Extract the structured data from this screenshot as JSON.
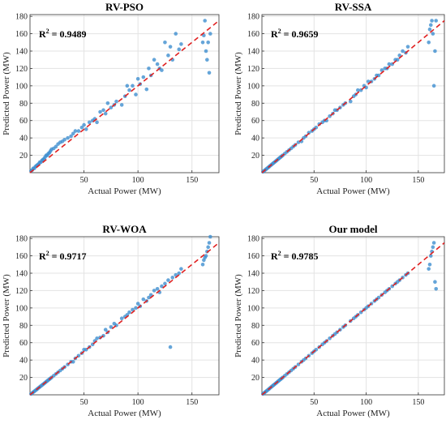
{
  "colors": {
    "points": "#3f8fcf",
    "diagonal": "#e02020",
    "grid": "#e3e3e3",
    "axis": "#333333"
  },
  "chart_data": [
    {
      "type": "scatter",
      "title": "RV-PSO",
      "r2_label": "R",
      "r2_sup": "2",
      "r2_value": "= 0.9489",
      "xlabel": "Actual Power (MW)",
      "ylabel": "Predicted Power (MW)",
      "xlim": [
        0,
        175
      ],
      "ylim": [
        0,
        182
      ],
      "xticks": [
        "50",
        "100",
        "150"
      ],
      "yticks": [
        "20",
        "40",
        "60",
        "80",
        "100",
        "120",
        "140",
        "160",
        "180"
      ],
      "grid": true,
      "diagonal": "y=x",
      "x": [
        1,
        2,
        3,
        4,
        5,
        6,
        7,
        8,
        9,
        10,
        11,
        12,
        13,
        14,
        15,
        16,
        17,
        18,
        19,
        20,
        22,
        24,
        26,
        28,
        30,
        32,
        35,
        38,
        40,
        42,
        45,
        48,
        50,
        52,
        55,
        58,
        60,
        62,
        65,
        68,
        70,
        72,
        75,
        78,
        80,
        85,
        88,
        90,
        92,
        95,
        98,
        100,
        102,
        105,
        108,
        110,
        112,
        115,
        118,
        120,
        122,
        125,
        128,
        130,
        132,
        135,
        138,
        140,
        160,
        161,
        162,
        163,
        164,
        165,
        166,
        167
      ],
      "y": [
        2,
        3,
        5,
        5,
        7,
        8,
        9,
        10,
        12,
        12,
        14,
        15,
        16,
        18,
        20,
        20,
        22,
        23,
        25,
        27,
        28,
        30,
        33,
        35,
        36,
        38,
        40,
        42,
        45,
        48,
        48,
        52,
        55,
        50,
        58,
        60,
        62,
        58,
        70,
        72,
        68,
        80,
        75,
        78,
        82,
        78,
        88,
        100,
        95,
        100,
        90,
        108,
        102,
        110,
        96,
        120,
        112,
        130,
        125,
        120,
        118,
        150,
        135,
        145,
        130,
        160,
        142,
        148,
        150,
        158,
        175,
        140,
        130,
        150,
        115,
        160
      ]
    },
    {
      "type": "scatter",
      "title": "RV-SSA",
      "r2_label": "R",
      "r2_sup": "2",
      "r2_value": "= 0.9659",
      "xlabel": "Actual Power (MW)",
      "ylabel": "Predicted Power (MW)",
      "xlim": [
        0,
        175
      ],
      "ylim": [
        0,
        182
      ],
      "xticks": [
        "50",
        "100",
        "150"
      ],
      "yticks": [
        "20",
        "40",
        "60",
        "80",
        "100",
        "120",
        "140",
        "160",
        "180"
      ],
      "grid": true,
      "diagonal": "y=x",
      "x": [
        1,
        2,
        3,
        4,
        5,
        6,
        7,
        8,
        9,
        10,
        11,
        12,
        13,
        14,
        15,
        16,
        17,
        18,
        19,
        20,
        22,
        24,
        26,
        28,
        30,
        32,
        35,
        38,
        40,
        42,
        45,
        48,
        50,
        52,
        55,
        58,
        60,
        62,
        65,
        68,
        70,
        72,
        75,
        78,
        80,
        85,
        88,
        90,
        92,
        95,
        98,
        100,
        102,
        105,
        108,
        110,
        112,
        115,
        118,
        120,
        122,
        125,
        128,
        130,
        132,
        135,
        138,
        140,
        160,
        161,
        162,
        163,
        164,
        165,
        166,
        167
      ],
      "y": [
        1,
        2,
        3,
        4,
        5,
        6,
        7,
        8,
        9,
        10,
        11,
        12,
        13,
        14,
        15,
        16,
        17,
        18,
        19,
        20,
        22,
        24,
        26,
        28,
        30,
        32,
        35,
        36,
        40,
        42,
        46,
        48,
        50,
        52,
        56,
        58,
        60,
        60,
        65,
        68,
        72,
        72,
        75,
        78,
        80,
        82,
        88,
        90,
        95,
        95,
        100,
        98,
        105,
        105,
        108,
        112,
        112,
        118,
        120,
        120,
        125,
        125,
        130,
        130,
        135,
        140,
        138,
        145,
        150,
        165,
        170,
        175,
        160,
        100,
        140,
        175
      ]
    },
    {
      "type": "scatter",
      "title": "RV-WOA",
      "r2_label": "R",
      "r2_sup": "2",
      "r2_value": "= 0.9717",
      "xlabel": "Actual Power (MW)",
      "ylabel": "Predicted Power (MW)",
      "xlim": [
        0,
        175
      ],
      "ylim": [
        0,
        182
      ],
      "xticks": [
        "50",
        "100",
        "150"
      ],
      "yticks": [
        "20",
        "40",
        "60",
        "80",
        "100",
        "120",
        "140",
        "160",
        "180"
      ],
      "grid": true,
      "diagonal": "y=x",
      "x": [
        1,
        2,
        3,
        4,
        5,
        6,
        7,
        8,
        9,
        10,
        11,
        12,
        13,
        14,
        15,
        16,
        17,
        18,
        19,
        20,
        22,
        24,
        26,
        28,
        30,
        32,
        35,
        38,
        40,
        42,
        45,
        48,
        50,
        52,
        55,
        58,
        60,
        62,
        65,
        68,
        70,
        72,
        75,
        78,
        80,
        85,
        88,
        90,
        92,
        95,
        98,
        100,
        102,
        105,
        108,
        110,
        112,
        115,
        118,
        120,
        122,
        125,
        128,
        130,
        132,
        135,
        138,
        140,
        160,
        161,
        162,
        163,
        164,
        165,
        166,
        167
      ],
      "y": [
        1,
        2,
        3,
        4,
        5,
        6,
        7,
        8,
        9,
        10,
        11,
        12,
        13,
        14,
        15,
        16,
        17,
        18,
        19,
        20,
        22,
        24,
        26,
        28,
        30,
        32,
        35,
        38,
        38,
        42,
        45,
        48,
        52,
        52,
        55,
        58,
        62,
        65,
        66,
        68,
        75,
        72,
        78,
        82,
        80,
        88,
        90,
        92,
        95,
        98,
        100,
        105,
        102,
        110,
        108,
        112,
        115,
        120,
        122,
        118,
        125,
        128,
        132,
        55,
        135,
        138,
        140,
        145,
        150,
        155,
        158,
        160,
        165,
        170,
        175,
        182
      ]
    },
    {
      "type": "scatter",
      "title": "Our model",
      "r2_label": "R",
      "r2_sup": "2",
      "r2_value": "= 0.9785",
      "xlabel": "Actual Power (MW)",
      "ylabel": "Predicted Power (MW)",
      "xlim": [
        0,
        175
      ],
      "ylim": [
        0,
        182
      ],
      "xticks": [
        "50",
        "100",
        "150"
      ],
      "yticks": [
        "20",
        "40",
        "60",
        "80",
        "100",
        "120",
        "140",
        "160",
        "180"
      ],
      "grid": true,
      "diagonal": "y=x",
      "x": [
        1,
        2,
        3,
        4,
        5,
        6,
        7,
        8,
        9,
        10,
        11,
        12,
        13,
        14,
        15,
        16,
        17,
        18,
        19,
        20,
        22,
        24,
        26,
        28,
        30,
        32,
        35,
        38,
        40,
        42,
        45,
        48,
        50,
        52,
        55,
        58,
        60,
        62,
        65,
        68,
        70,
        72,
        75,
        78,
        80,
        85,
        88,
        90,
        92,
        95,
        98,
        100,
        102,
        105,
        108,
        110,
        112,
        115,
        118,
        120,
        122,
        125,
        128,
        130,
        132,
        135,
        138,
        140,
        160,
        161,
        162,
        163,
        164,
        165,
        166,
        167
      ],
      "y": [
        1,
        2,
        3,
        4,
        5,
        6,
        7,
        8,
        9,
        10,
        11,
        12,
        13,
        14,
        15,
        16,
        17,
        18,
        19,
        20,
        22,
        24,
        26,
        28,
        30,
        32,
        35,
        38,
        40,
        42,
        45,
        48,
        50,
        52,
        55,
        58,
        60,
        62,
        65,
        68,
        70,
        72,
        75,
        78,
        80,
        85,
        88,
        90,
        92,
        95,
        98,
        100,
        102,
        105,
        108,
        110,
        112,
        115,
        118,
        120,
        122,
        125,
        128,
        130,
        132,
        135,
        138,
        140,
        145,
        150,
        160,
        165,
        170,
        175,
        130,
        122
      ]
    }
  ]
}
